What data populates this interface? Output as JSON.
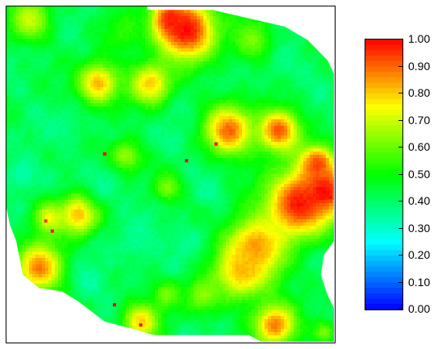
{
  "chart_data": {
    "type": "heatmap",
    "title": "",
    "xlabel": "",
    "ylabel": "",
    "colorbar": {
      "min": 0.0,
      "max": 1.0,
      "tick_values": [
        0.0,
        0.1,
        0.2,
        0.3,
        0.4,
        0.5,
        0.6,
        0.7,
        0.8,
        0.9,
        1.0
      ],
      "tick_labels": [
        "0.00",
        "0.10",
        "0.20",
        "0.30",
        "0.40",
        "0.50",
        "0.60",
        "0.70",
        "0.80",
        "0.90",
        "1.00"
      ],
      "colormap_stops": [
        "#0000ff",
        "#00ffff",
        "#00ff00",
        "#ffff00",
        "#ff0000"
      ],
      "placement": "right"
    },
    "field": {
      "background_value": 0.42,
      "hotspots": [
        {
          "u": 0.55,
          "v": 0.07,
          "value": 1.0,
          "radius": 0.1
        },
        {
          "u": 0.5,
          "v": 0.04,
          "value": 0.98,
          "radius": 0.06
        },
        {
          "u": 0.07,
          "v": 0.04,
          "value": 0.7,
          "radius": 0.07
        },
        {
          "u": 0.28,
          "v": 0.23,
          "value": 0.82,
          "radius": 0.07
        },
        {
          "u": 0.44,
          "v": 0.23,
          "value": 0.8,
          "radius": 0.07
        },
        {
          "u": 0.68,
          "v": 0.37,
          "value": 0.9,
          "radius": 0.08
        },
        {
          "u": 0.83,
          "v": 0.37,
          "value": 0.92,
          "radius": 0.07
        },
        {
          "u": 0.89,
          "v": 0.59,
          "value": 0.98,
          "radius": 0.11
        },
        {
          "u": 0.97,
          "v": 0.55,
          "value": 1.0,
          "radius": 0.08
        },
        {
          "u": 0.95,
          "v": 0.47,
          "value": 0.94,
          "radius": 0.06
        },
        {
          "u": 0.76,
          "v": 0.72,
          "value": 0.86,
          "radius": 0.1
        },
        {
          "u": 0.72,
          "v": 0.79,
          "value": 0.82,
          "radius": 0.09
        },
        {
          "u": 0.1,
          "v": 0.78,
          "value": 0.88,
          "radius": 0.08
        },
        {
          "u": 0.22,
          "v": 0.62,
          "value": 0.82,
          "radius": 0.07
        },
        {
          "u": 0.13,
          "v": 0.63,
          "value": 0.74,
          "radius": 0.05
        },
        {
          "u": 0.41,
          "v": 0.94,
          "value": 0.8,
          "radius": 0.06
        },
        {
          "u": 0.82,
          "v": 0.95,
          "value": 0.88,
          "radius": 0.07
        },
        {
          "u": 0.97,
          "v": 0.97,
          "value": 0.62,
          "radius": 0.04
        },
        {
          "u": 0.75,
          "v": 0.1,
          "value": 0.62,
          "radius": 0.07
        },
        {
          "u": 0.36,
          "v": 0.45,
          "value": 0.66,
          "radius": 0.06
        },
        {
          "u": 0.49,
          "v": 0.54,
          "value": 0.62,
          "radius": 0.05
        },
        {
          "u": 0.6,
          "v": 0.86,
          "value": 0.64,
          "radius": 0.06
        },
        {
          "u": 0.49,
          "v": 0.86,
          "value": 0.62,
          "radius": 0.05
        },
        {
          "u": 0.36,
          "v": 0.07,
          "value": 0.54,
          "radius": 0.07
        }
      ],
      "coldspots": [
        {
          "u": 0.05,
          "v": 0.5,
          "value": 0.3,
          "radius": 0.06
        },
        {
          "u": 0.4,
          "v": 0.7,
          "value": 0.34,
          "radius": 0.08
        },
        {
          "u": 0.3,
          "v": 0.53,
          "value": 0.34,
          "radius": 0.07
        },
        {
          "u": 0.5,
          "v": 0.4,
          "value": 0.36,
          "radius": 0.06
        },
        {
          "u": 0.55,
          "v": 0.7,
          "value": 0.34,
          "radius": 0.06
        },
        {
          "u": 0.25,
          "v": 0.82,
          "value": 0.32,
          "radius": 0.06
        },
        {
          "u": 0.18,
          "v": 0.36,
          "value": 0.36,
          "radius": 0.07
        },
        {
          "u": 0.85,
          "v": 0.17,
          "value": 0.36,
          "radius": 0.06
        },
        {
          "u": 0.62,
          "v": 0.55,
          "value": 0.34,
          "radius": 0.05
        }
      ],
      "point_markers": [
        {
          "u": 0.3,
          "v": 0.44,
          "value": 1.0
        },
        {
          "u": 0.55,
          "v": 0.46,
          "value": 1.0
        },
        {
          "u": 0.64,
          "v": 0.41,
          "value": 1.0
        },
        {
          "u": 0.33,
          "v": 0.89,
          "value": 1.0
        },
        {
          "u": 0.41,
          "v": 0.95,
          "value": 1.0
        },
        {
          "u": 0.14,
          "v": 0.67,
          "value": 1.0
        },
        {
          "u": 0.12,
          "v": 0.64,
          "value": 0.95
        },
        {
          "u": 0.99,
          "v": 0.57,
          "value": 1.0
        }
      ],
      "outside_mask_polygon": [
        [
          0.0,
          0.0
        ],
        [
          0.43,
          0.0
        ],
        [
          0.43,
          0.01
        ],
        [
          0.63,
          0.01
        ],
        [
          0.67,
          0.02
        ],
        [
          0.85,
          0.06
        ],
        [
          0.92,
          0.1
        ],
        [
          0.98,
          0.16
        ],
        [
          1.0,
          0.2
        ],
        [
          1.0,
          0.7
        ],
        [
          0.97,
          0.74
        ],
        [
          0.96,
          0.8
        ],
        [
          0.98,
          0.86
        ],
        [
          1.0,
          0.9
        ],
        [
          1.0,
          1.0
        ],
        [
          0.78,
          1.0
        ],
        [
          0.74,
          0.98
        ],
        [
          0.45,
          0.98
        ],
        [
          0.38,
          0.96
        ],
        [
          0.3,
          0.94
        ],
        [
          0.22,
          0.88
        ],
        [
          0.17,
          0.85
        ],
        [
          0.1,
          0.84
        ],
        [
          0.05,
          0.8
        ],
        [
          0.03,
          0.7
        ],
        [
          0.01,
          0.65
        ],
        [
          0.0,
          0.6
        ]
      ]
    }
  }
}
